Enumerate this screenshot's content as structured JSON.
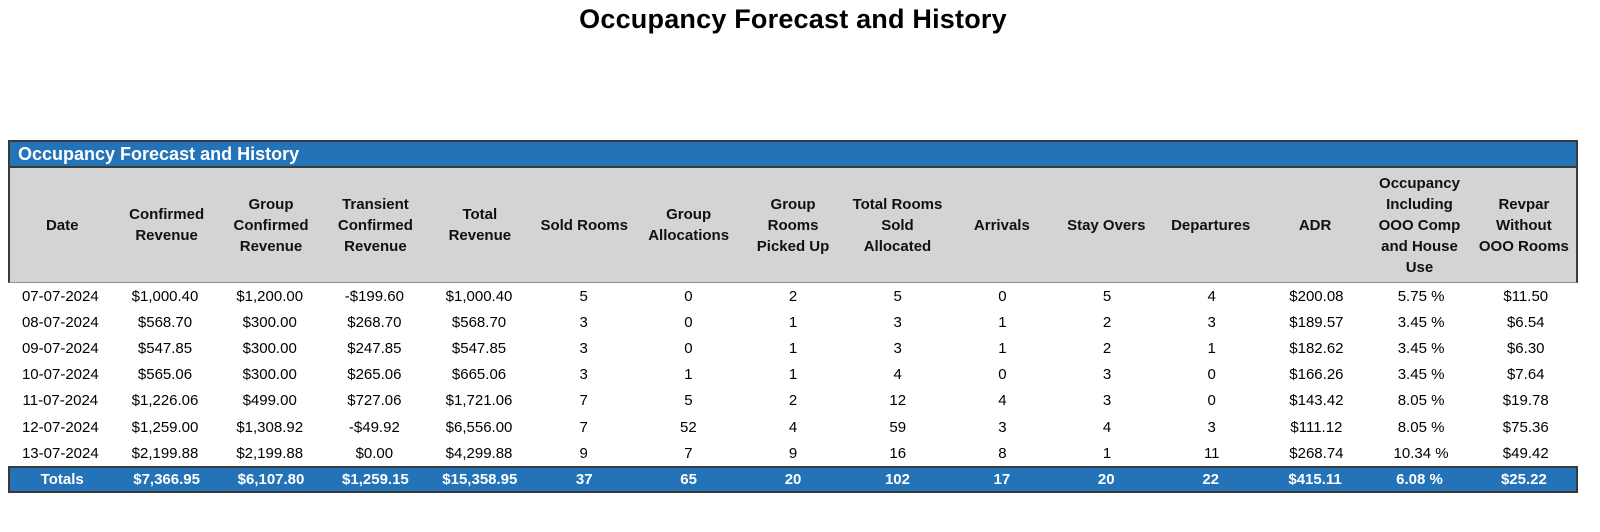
{
  "page_title": "Occupancy Forecast and History",
  "table": {
    "title": "Occupancy Forecast and History",
    "columns": [
      "Date",
      "Confirmed Revenue",
      "Group Confirmed Revenue",
      "Transient Confirmed Revenue",
      "Total Revenue",
      "Sold Rooms",
      "Group Allocations",
      "Group Rooms Picked Up",
      "Total Rooms Sold Allocated",
      "Arrivals",
      "Stay Overs",
      "Departures",
      "ADR",
      "Occupancy Including OOO Comp and House Use",
      "Revpar Without OOO Rooms"
    ],
    "rows": [
      [
        "07-07-2024",
        "$1,000.40",
        "$1,200.00",
        "-$199.60",
        "$1,000.40",
        "5",
        "0",
        "2",
        "5",
        "0",
        "5",
        "4",
        "$200.08",
        "5.75 %",
        "$11.50"
      ],
      [
        "08-07-2024",
        "$568.70",
        "$300.00",
        "$268.70",
        "$568.70",
        "3",
        "0",
        "1",
        "3",
        "1",
        "2",
        "3",
        "$189.57",
        "3.45 %",
        "$6.54"
      ],
      [
        "09-07-2024",
        "$547.85",
        "$300.00",
        "$247.85",
        "$547.85",
        "3",
        "0",
        "1",
        "3",
        "1",
        "2",
        "1",
        "$182.62",
        "3.45 %",
        "$6.30"
      ],
      [
        "10-07-2024",
        "$565.06",
        "$300.00",
        "$265.06",
        "$665.06",
        "3",
        "1",
        "1",
        "4",
        "0",
        "3",
        "0",
        "$166.26",
        "3.45 %",
        "$7.64"
      ],
      [
        "11-07-2024",
        "$1,226.06",
        "$499.00",
        "$727.06",
        "$1,721.06",
        "7",
        "5",
        "2",
        "12",
        "4",
        "3",
        "0",
        "$143.42",
        "8.05 %",
        "$19.78"
      ],
      [
        "12-07-2024",
        "$1,259.00",
        "$1,308.92",
        "-$49.92",
        "$6,556.00",
        "7",
        "52",
        "4",
        "59",
        "3",
        "4",
        "3",
        "$111.12",
        "8.05 %",
        "$75.36"
      ],
      [
        "13-07-2024",
        "$2,199.88",
        "$2,199.88",
        "$0.00",
        "$4,299.88",
        "9",
        "7",
        "9",
        "16",
        "8",
        "1",
        "11",
        "$268.74",
        "10.34 %",
        "$49.42"
      ]
    ],
    "totals": [
      "Totals",
      "$7,366.95",
      "$6,107.80",
      "$1,259.15",
      "$15,358.95",
      "37",
      "65",
      "20",
      "102",
      "17",
      "20",
      "22",
      "$415.11",
      "6.08 %",
      "$25.22"
    ]
  },
  "colors": {
    "accent_blue": "#2473B8",
    "header_gray": "#D4D4D4",
    "border_dark": "#3A3A3A"
  }
}
